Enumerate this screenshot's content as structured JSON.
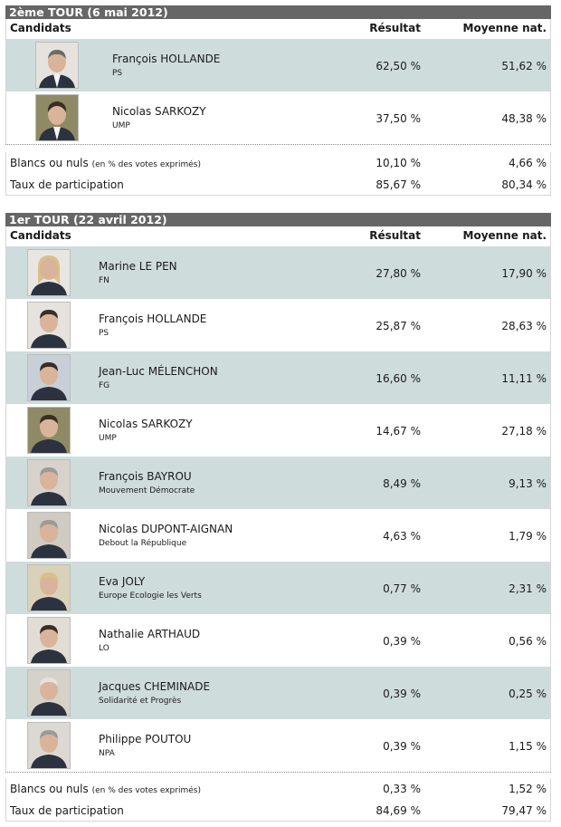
{
  "round2": {
    "title": "2ème TOUR (6 mai 2012)",
    "headers": {
      "candidats": "Candidats",
      "resultat": "Résultat",
      "moyenne": "Moyenne nat."
    },
    "candidates": [
      {
        "name": "François HOLLANDE",
        "party": "PS",
        "result": "62,50 %",
        "national": "51,62 %"
      },
      {
        "name": "Nicolas SARKOZY",
        "party": "UMP",
        "result": "37,50 %",
        "national": "48,38 %"
      }
    ],
    "blank": {
      "label": "Blancs ou nuls",
      "note": "(en % des votes exprimés)",
      "result": "10,10 %",
      "national": "4,66 %"
    },
    "turnout": {
      "label": "Taux de participation",
      "result": "85,67 %",
      "national": "80,34 %"
    }
  },
  "round1": {
    "title": "1er TOUR (22 avril 2012)",
    "headers": {
      "candidats": "Candidats",
      "resultat": "Résultat",
      "moyenne": "Moyenne nat."
    },
    "candidates": [
      {
        "name": "Marine LE PEN",
        "party": "FN",
        "result": "27,80 %",
        "national": "17,90 %"
      },
      {
        "name": "François HOLLANDE",
        "party": "PS",
        "result": "25,87 %",
        "national": "28,63 %"
      },
      {
        "name": "Jean-Luc MÉLENCHON",
        "party": "FG",
        "result": "16,60 %",
        "national": "11,11 %"
      },
      {
        "name": "Nicolas SARKOZY",
        "party": "UMP",
        "result": "14,67 %",
        "national": "27,18 %"
      },
      {
        "name": "François BAYROU",
        "party": "Mouvement Démocrate",
        "result": "8,49 %",
        "national": "9,13 %"
      },
      {
        "name": "Nicolas DUPONT-AIGNAN",
        "party": "Debout la République",
        "result": "4,63 %",
        "national": "1,79 %"
      },
      {
        "name": "Eva JOLY",
        "party": "Europe Ecologie les Verts",
        "result": "0,77 %",
        "national": "2,31 %"
      },
      {
        "name": "Nathalie ARTHAUD",
        "party": "LO",
        "result": "0,39 %",
        "national": "0,56 %"
      },
      {
        "name": "Jacques CHEMINADE",
        "party": "Solidarité et Progrès",
        "result": "0,39 %",
        "national": "0,25 %"
      },
      {
        "name": "Philippe POUTOU",
        "party": "NPA",
        "result": "0,39 %",
        "national": "1,15 %"
      }
    ],
    "blank": {
      "label": "Blancs ou nuls",
      "note": "(en % des votes exprimés)",
      "result": "0,33 %",
      "national": "1,52 %"
    },
    "turnout": {
      "label": "Taux de participation",
      "result": "84,69 %",
      "national": "79,47 %"
    }
  },
  "portraits": {
    "skin": "#d9b49a",
    "suit": "#2c3240",
    "hair": {
      "blond": "#d8c08a",
      "dark": "#3a2e26",
      "grey": "#9a9a9a",
      "white": "#e2e2e2"
    }
  }
}
